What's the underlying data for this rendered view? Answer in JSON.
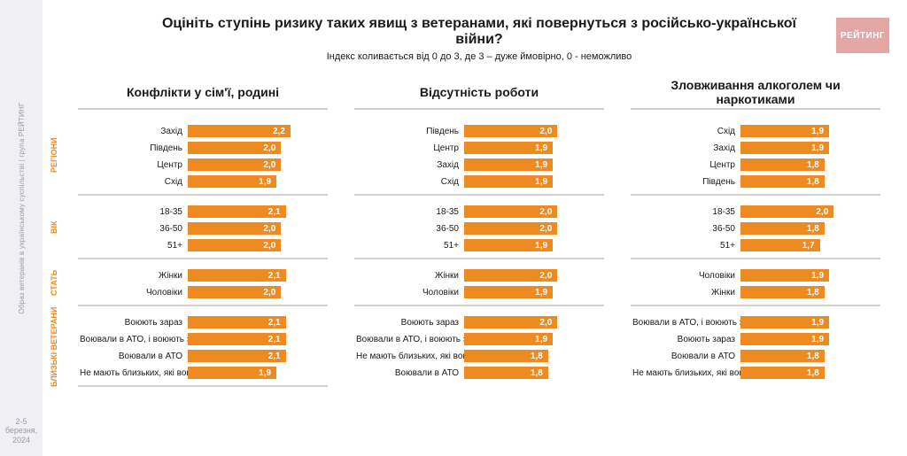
{
  "meta": {
    "sidebar_text": "Образ ветеранів в українському суспільстві | група РЕЙТИНГ",
    "date_line1": "2-5 березня,",
    "date_line2": "2024",
    "logo_text": "РЕЙТИНГ"
  },
  "title": "Оцініть ступінь ризику таких явищ з ветеранами, які повернуться з російсько-української війни?",
  "subtitle": "Індекс коливається від 0 до 3, де 3 – дуже ймовірно, 0 - неможливо",
  "style": {
    "bar_color": "#ed8a22",
    "bar_text_color": "#ffffff",
    "max_value": 3,
    "title_fontsize": 16,
    "subtitle_fontsize": 11,
    "col_title_fontsize": 14,
    "label_fontsize": 10,
    "value_fontsize": 10,
    "side_label_color": "#ed8a22",
    "divider_color": "#d0d0d0",
    "background": "#ffffff"
  },
  "group_labels": [
    "РЕГІОНИ",
    "ВІК",
    "СТАТЬ",
    "БЛИЗЬКІ ВЕТЕРАНИ"
  ],
  "columns": [
    {
      "title": "Конфлікти у сім'ї, родині",
      "groups": [
        {
          "rows": [
            {
              "label": "Захід",
              "value": 2.2
            },
            {
              "label": "Південь",
              "value": 2.0
            },
            {
              "label": "Центр",
              "value": 2.0
            },
            {
              "label": "Схід",
              "value": 1.9
            }
          ]
        },
        {
          "rows": [
            {
              "label": "18-35",
              "value": 2.1
            },
            {
              "label": "36-50",
              "value": 2.0
            },
            {
              "label": "51+",
              "value": 2.0
            }
          ]
        },
        {
          "rows": [
            {
              "label": "Жінки",
              "value": 2.1
            },
            {
              "label": "Чоловіки",
              "value": 2.0
            }
          ]
        },
        {
          "rows": [
            {
              "label": "Воюють зараз",
              "value": 2.1
            },
            {
              "label": "Воювали в АТО, і воюють зараз",
              "value": 2.1
            },
            {
              "label": "Воювали в АТО",
              "value": 2.1
            },
            {
              "label": "Не мають близьких, які воюють",
              "value": 1.9
            }
          ]
        }
      ]
    },
    {
      "title": "Відсутність роботи",
      "groups": [
        {
          "rows": [
            {
              "label": "Південь",
              "value": 2.0
            },
            {
              "label": "Центр",
              "value": 1.9
            },
            {
              "label": "Захід",
              "value": 1.9
            },
            {
              "label": "Схід",
              "value": 1.9
            }
          ]
        },
        {
          "rows": [
            {
              "label": "18-35",
              "value": 2.0
            },
            {
              "label": "36-50",
              "value": 2.0
            },
            {
              "label": "51+",
              "value": 1.9
            }
          ]
        },
        {
          "rows": [
            {
              "label": "Жінки",
              "value": 2.0
            },
            {
              "label": "Чоловіки",
              "value": 1.9
            }
          ]
        },
        {
          "rows": [
            {
              "label": "Воюють зараз",
              "value": 2.0
            },
            {
              "label": "Воювали в АТО, і воюють зараз",
              "value": 1.9
            },
            {
              "label": "Не мають близьких, які воюють",
              "value": 1.8
            },
            {
              "label": "Воювали в АТО",
              "value": 1.8
            }
          ]
        }
      ]
    },
    {
      "title": "Зловживання алкоголем чи наркотиками",
      "groups": [
        {
          "rows": [
            {
              "label": "Схід",
              "value": 1.9
            },
            {
              "label": "Захід",
              "value": 1.9
            },
            {
              "label": "Центр",
              "value": 1.8
            },
            {
              "label": "Південь",
              "value": 1.8
            }
          ]
        },
        {
          "rows": [
            {
              "label": "18-35",
              "value": 2.0
            },
            {
              "label": "36-50",
              "value": 1.8
            },
            {
              "label": "51+",
              "value": 1.7
            }
          ]
        },
        {
          "rows": [
            {
              "label": "Чоловіки",
              "value": 1.9
            },
            {
              "label": "Жінки",
              "value": 1.8
            }
          ]
        },
        {
          "rows": [
            {
              "label": "Воювали в АТО, і воюють зараз",
              "value": 1.9
            },
            {
              "label": "Воюють зараз",
              "value": 1.9
            },
            {
              "label": "Воювали в АТО",
              "value": 1.8
            },
            {
              "label": "Не мають близьких, які воюють",
              "value": 1.8
            }
          ]
        }
      ]
    }
  ]
}
